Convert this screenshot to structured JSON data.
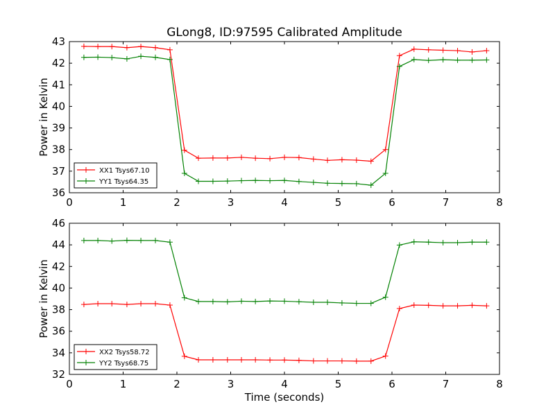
{
  "title": "GLong8, ID:97595 Calibrated Amplitude",
  "colors": {
    "red": "#ff0000",
    "green": "#008000"
  },
  "chart_data": [
    {
      "type": "line",
      "ylabel": "Power in Kelvin",
      "xlabel": "",
      "xlim": [
        0,
        8
      ],
      "ylim": [
        36,
        43
      ],
      "xticks": [
        "0",
        "1",
        "2",
        "3",
        "4",
        "5",
        "6",
        "7",
        "8"
      ],
      "yticks": [
        "36",
        "37",
        "38",
        "39",
        "40",
        "41",
        "42",
        "43"
      ],
      "legend_position": "lower-left",
      "x": [
        0.27,
        0.53,
        0.79,
        1.07,
        1.33,
        1.6,
        1.87,
        2.14,
        2.4,
        2.67,
        2.94,
        3.2,
        3.46,
        3.73,
        4.0,
        4.27,
        4.54,
        4.8,
        5.07,
        5.34,
        5.61,
        5.88,
        6.14,
        6.41,
        6.68,
        6.95,
        7.22,
        7.49,
        7.76
      ],
      "series": [
        {
          "name": "XX1 Tsys67.10",
          "color": "#ff0000",
          "values": [
            42.78,
            42.77,
            42.77,
            42.72,
            42.77,
            42.72,
            42.62,
            37.97,
            37.6,
            37.61,
            37.61,
            37.64,
            37.6,
            37.58,
            37.64,
            37.63,
            37.56,
            37.5,
            37.53,
            37.51,
            37.46,
            38.0,
            42.35,
            42.65,
            42.62,
            42.6,
            42.58,
            42.52,
            42.58
          ]
        },
        {
          "name": "YY1 Tsys64.35",
          "color": "#008000",
          "values": [
            42.27,
            42.28,
            42.26,
            42.2,
            42.32,
            42.27,
            42.17,
            36.9,
            36.53,
            36.53,
            36.54,
            36.56,
            36.57,
            36.56,
            36.57,
            36.52,
            36.48,
            36.44,
            36.43,
            36.42,
            36.35,
            36.9,
            41.85,
            42.17,
            42.13,
            42.16,
            42.14,
            42.14,
            42.15
          ]
        }
      ]
    },
    {
      "type": "line",
      "ylabel": "Power in Kelvin",
      "xlabel": "Time (seconds)",
      "xlim": [
        0,
        8
      ],
      "ylim": [
        32,
        46
      ],
      "xticks": [
        "0",
        "1",
        "2",
        "3",
        "4",
        "5",
        "6",
        "7",
        "8"
      ],
      "yticks": [
        "32",
        "34",
        "36",
        "38",
        "40",
        "42",
        "44",
        "46"
      ],
      "legend_position": "lower-left",
      "x": [
        0.27,
        0.53,
        0.79,
        1.07,
        1.33,
        1.6,
        1.87,
        2.14,
        2.4,
        2.67,
        2.94,
        3.2,
        3.46,
        3.73,
        4.0,
        4.27,
        4.54,
        4.8,
        5.07,
        5.34,
        5.61,
        5.88,
        6.14,
        6.41,
        6.68,
        6.95,
        7.22,
        7.49,
        7.76
      ],
      "series": [
        {
          "name": "XX2 Tsys58.72",
          "color": "#ff0000",
          "values": [
            38.48,
            38.55,
            38.55,
            38.48,
            38.55,
            38.55,
            38.42,
            33.68,
            33.35,
            33.35,
            33.35,
            33.35,
            33.35,
            33.33,
            33.33,
            33.3,
            33.25,
            33.25,
            33.25,
            33.23,
            33.23,
            33.7,
            38.1,
            38.42,
            38.4,
            38.35,
            38.35,
            38.4,
            38.35
          ]
        },
        {
          "name": "YY2 Tsys68.75",
          "color": "#008000",
          "values": [
            44.4,
            44.4,
            44.35,
            44.42,
            44.4,
            44.4,
            44.25,
            39.1,
            38.75,
            38.75,
            38.72,
            38.78,
            38.75,
            38.8,
            38.78,
            38.73,
            38.68,
            38.68,
            38.62,
            38.58,
            38.58,
            39.15,
            43.98,
            44.28,
            44.25,
            44.2,
            44.2,
            44.25,
            44.25
          ]
        }
      ]
    }
  ]
}
